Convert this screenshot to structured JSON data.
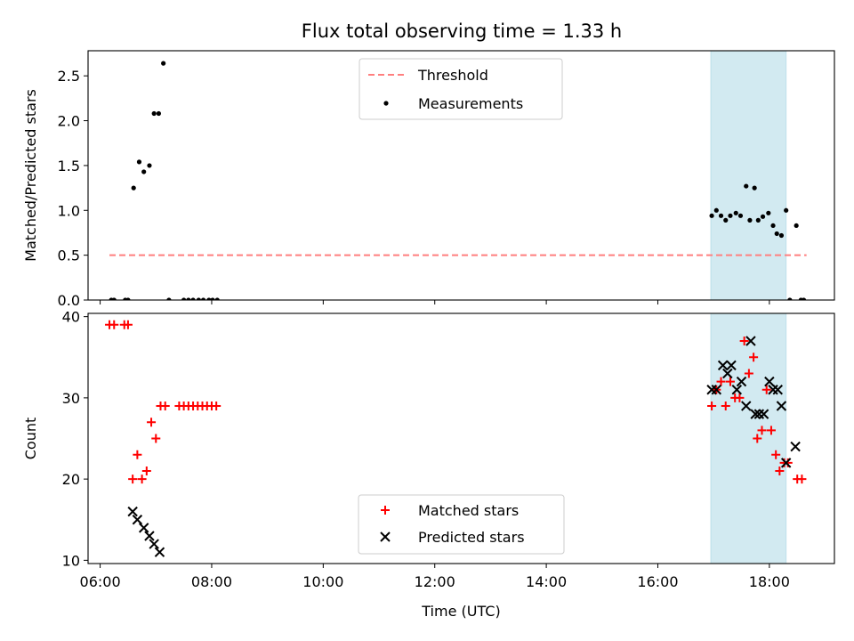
{
  "figure": {
    "title": "Flux total observing time = 1.33 h"
  },
  "chart_data": [
    {
      "type": "scatter",
      "ylabel": "Matched/Predicted stars",
      "xlabel": "",
      "xlim": [
        "05:47",
        "19:10"
      ],
      "ylim": [
        0,
        2.78
      ],
      "x_ticks": [
        "06:00",
        "08:00",
        "10:00",
        "12:00",
        "14:00",
        "16:00",
        "18:00"
      ],
      "y_ticks": [
        "0.0",
        "0.5",
        "1.0",
        "1.5",
        "2.0",
        "2.5"
      ],
      "shaded_span": {
        "start": "16:57",
        "end": "18:18",
        "color": "#add8e6"
      },
      "legend": {
        "position": "top-center",
        "entries": [
          "Threshold",
          "Measurements"
        ]
      },
      "threshold": {
        "name": "Threshold",
        "value": 0.5,
        "x_start": "06:10",
        "x_end": "18:40",
        "color": "#ff7f7f"
      },
      "series": [
        {
          "name": "Measurements",
          "color": "#000000",
          "points": [
            [
              "06:12",
              0
            ],
            [
              "06:15",
              0
            ],
            [
              "06:27",
              0
            ],
            [
              "06:30",
              0
            ],
            [
              "06:36",
              1.25
            ],
            [
              "06:42",
              1.54
            ],
            [
              "06:47",
              1.43
            ],
            [
              "06:53",
              1.5
            ],
            [
              "06:58",
              2.08
            ],
            [
              "07:03",
              2.08
            ],
            [
              "07:08",
              2.64
            ],
            [
              "07:14",
              0
            ],
            [
              "07:30",
              0
            ],
            [
              "07:35",
              0
            ],
            [
              "07:40",
              0
            ],
            [
              "07:46",
              0
            ],
            [
              "07:51",
              0
            ],
            [
              "07:57",
              0
            ],
            [
              "08:01",
              0
            ],
            [
              "08:06",
              0
            ],
            [
              "16:58",
              0.94
            ],
            [
              "17:03",
              1.0
            ],
            [
              "17:08",
              0.94
            ],
            [
              "17:13",
              0.89
            ],
            [
              "17:18",
              0.94
            ],
            [
              "17:24",
              0.97
            ],
            [
              "17:29",
              0.94
            ],
            [
              "17:35",
              1.27
            ],
            [
              "17:39",
              0.89
            ],
            [
              "17:44",
              1.25
            ],
            [
              "17:48",
              0.89
            ],
            [
              "17:53",
              0.93
            ],
            [
              "17:59",
              0.97
            ],
            [
              "18:04",
              0.83
            ],
            [
              "18:08",
              0.74
            ],
            [
              "18:13",
              0.72
            ],
            [
              "18:18",
              1.0
            ],
            [
              "18:22",
              0
            ],
            [
              "18:29",
              0.83
            ],
            [
              "18:34",
              0
            ],
            [
              "18:37",
              0
            ]
          ]
        }
      ]
    },
    {
      "type": "scatter",
      "xlabel": "Time (UTC)",
      "ylabel": "Count",
      "xlim": [
        "05:47",
        "19:10"
      ],
      "ylim": [
        9.6,
        40.4
      ],
      "x_ticks": [
        "06:00",
        "08:00",
        "10:00",
        "12:00",
        "14:00",
        "16:00",
        "18:00"
      ],
      "y_ticks": [
        "10",
        "20",
        "30",
        "40"
      ],
      "shaded_span": {
        "start": "16:57",
        "end": "18:18",
        "color": "#add8e6"
      },
      "legend": {
        "position": "bottom-center",
        "entries": [
          "Matched stars",
          "Predicted stars"
        ]
      },
      "series": [
        {
          "name": "Matched stars",
          "marker": "+",
          "color": "#ff0000",
          "points": [
            [
              "06:10",
              39
            ],
            [
              "06:15",
              39
            ],
            [
              "06:26",
              39
            ],
            [
              "06:30",
              39
            ],
            [
              "06:35",
              20
            ],
            [
              "06:40",
              23
            ],
            [
              "06:45",
              20
            ],
            [
              "06:50",
              21
            ],
            [
              "06:55",
              27
            ],
            [
              "07:00",
              25
            ],
            [
              "07:05",
              29
            ],
            [
              "07:10",
              29
            ],
            [
              "07:25",
              29
            ],
            [
              "07:30",
              29
            ],
            [
              "07:35",
              29
            ],
            [
              "07:40",
              29
            ],
            [
              "07:45",
              29
            ],
            [
              "07:50",
              29
            ],
            [
              "07:55",
              29
            ],
            [
              "08:00",
              29
            ],
            [
              "08:05",
              29
            ],
            [
              "16:58",
              29
            ],
            [
              "17:03",
              31
            ],
            [
              "17:08",
              32
            ],
            [
              "17:13",
              29
            ],
            [
              "17:18",
              32
            ],
            [
              "17:23",
              30
            ],
            [
              "17:28",
              30
            ],
            [
              "17:33",
              37
            ],
            [
              "17:38",
              33
            ],
            [
              "17:43",
              35
            ],
            [
              "17:47",
              25
            ],
            [
              "17:52",
              26
            ],
            [
              "17:57",
              31
            ],
            [
              "18:02",
              26
            ],
            [
              "18:07",
              23
            ],
            [
              "18:11",
              21
            ],
            [
              "18:16",
              22
            ],
            [
              "18:20",
              22
            ],
            [
              "18:30",
              20
            ],
            [
              "18:35",
              20
            ]
          ]
        },
        {
          "name": "Predicted stars",
          "marker": "x",
          "color": "#000000",
          "points": [
            [
              "06:35",
              16
            ],
            [
              "06:40",
              15
            ],
            [
              "06:47",
              14
            ],
            [
              "06:53",
              13
            ],
            [
              "06:58",
              12
            ],
            [
              "07:04",
              11
            ],
            [
              "16:58",
              31
            ],
            [
              "17:03",
              31
            ],
            [
              "17:10",
              34
            ],
            [
              "17:15",
              33
            ],
            [
              "17:19",
              34
            ],
            [
              "17:25",
              31
            ],
            [
              "17:30",
              32
            ],
            [
              "17:35",
              29
            ],
            [
              "17:40",
              37
            ],
            [
              "17:45",
              28
            ],
            [
              "17:49",
              28
            ],
            [
              "17:54",
              28
            ],
            [
              "18:00",
              32
            ],
            [
              "18:04",
              31
            ],
            [
              "18:09",
              31
            ],
            [
              "18:13",
              29
            ],
            [
              "18:18",
              22
            ],
            [
              "18:28",
              24
            ]
          ]
        }
      ]
    }
  ]
}
